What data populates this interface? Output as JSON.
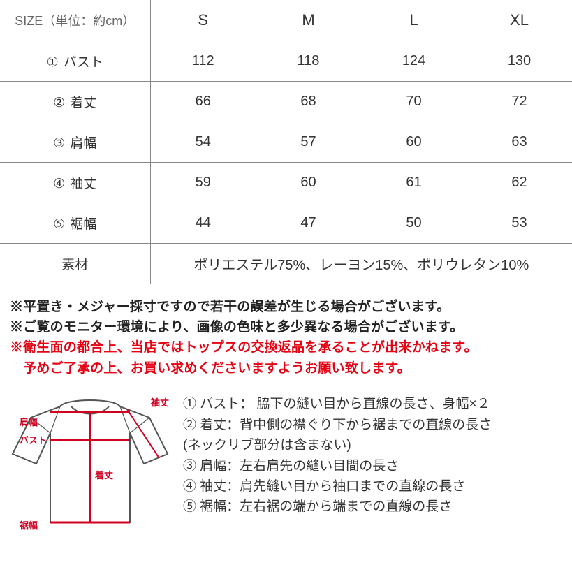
{
  "table": {
    "header_label": "SIZE（単位：約cm）",
    "sizes": [
      "S",
      "M",
      "L",
      "XL"
    ],
    "rows": [
      {
        "num": "①",
        "label": "バスト",
        "values": [
          "112",
          "118",
          "124",
          "130"
        ]
      },
      {
        "num": "②",
        "label": "着丈",
        "values": [
          "66",
          "68",
          "70",
          "72"
        ]
      },
      {
        "num": "③",
        "label": "肩幅",
        "values": [
          "54",
          "57",
          "60",
          "63"
        ]
      },
      {
        "num": "④",
        "label": "袖丈",
        "values": [
          "59",
          "60",
          "61",
          "62"
        ]
      },
      {
        "num": "⑤",
        "label": "裾幅",
        "values": [
          "44",
          "47",
          "50",
          "53"
        ]
      }
    ],
    "material_label": "素材",
    "material_value": "ポリエステル75%、レーヨン15%、ポリウレタン10%"
  },
  "notes": {
    "line1": "※平置き・メジャー採寸ですので若干の誤差が生じる場合がございます。",
    "line2": "※ご覧のモニター環境により、画像の色味と多少異なる場合がございます。",
    "line3": "※衛生面の都合上、当店ではトップスの交換返品を承ることが出来かねます。",
    "line4": "　予めご了承の上、お買い求めくださいますようお願い致します。"
  },
  "diagram": {
    "labels": {
      "sleeve": "袖丈",
      "shoulder": "肩幅",
      "bust": "バスト",
      "length": "着丈",
      "hem": "裾幅"
    },
    "colors": {
      "outline": "#555555",
      "measure": "#d00020"
    }
  },
  "definitions": {
    "d1": "① バスト：  脇下の縫い目から直線の長さ、身幅×２",
    "d2": "② 着丈：背中側の襟ぐり下から裾までの直線の長さ",
    "d2b": "(ネックリブ部分は含まない)",
    "d3": "③ 肩幅：左右肩先の縫い目間の長さ",
    "d4": "④ 袖丈：肩先縫い目から袖口までの直線の長さ",
    "d5": "⑤ 裾幅：左右裾の端から端までの直線の長さ"
  },
  "style": {
    "text_color": "#333333",
    "rule_color": "#888888",
    "red": "#e60012",
    "background": "#ffffff",
    "header_fontsize": 22,
    "cell_fontsize": 20,
    "note_fontsize": 19,
    "def_fontsize": 19
  }
}
